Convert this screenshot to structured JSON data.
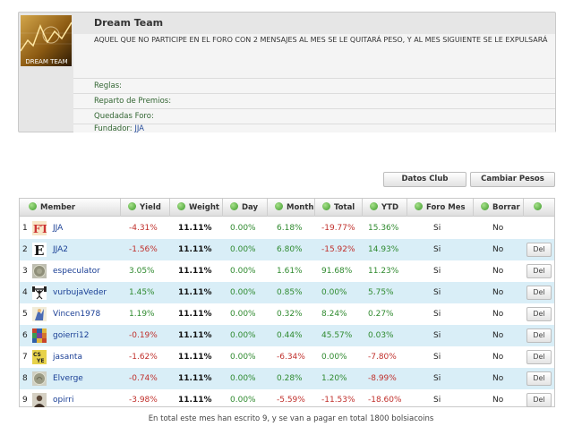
{
  "team": {
    "logo_text": "DREAM TEAM",
    "title": "Dream Team",
    "description": "AQUEL QUE NO PARTICIPE EN EL FORO CON 2 MENSAJES AL MES SE LE QUITARÁ PESO, Y AL MES SIGUIENTE SE LE EXPULSARÁ",
    "reglas_label": "Reglas:",
    "reparto_label": "Reparto de Premios:",
    "quedadas_label": "Quedadas Foro:",
    "fundador_label": "Fundador:",
    "fundador_name": "JJA"
  },
  "buttons": {
    "datos_club": "Datos Club",
    "cambiar_pesos": "Cambiar Pesos"
  },
  "table": {
    "headers": {
      "member": "Member",
      "yield": "Yield",
      "weight": "Weight",
      "day": "Day",
      "month": "Month",
      "total": "Total",
      "ytd": "YTD",
      "foro_mes": "Foro Mes",
      "borrar": "Borrar"
    },
    "del_label": "Del",
    "rows": [
      {
        "rank": "1",
        "name": "JJA",
        "avatar": "ft",
        "yield": "-4.31%",
        "weight": "11.11%",
        "day": "0.00%",
        "month": "6.18%",
        "total": "-19.77%",
        "ytd": "15.36%",
        "foro": "Si",
        "borrar": "No",
        "del": false
      },
      {
        "rank": "2",
        "name": "JJA2",
        "avatar": "e",
        "yield": "-1.56%",
        "weight": "11.11%",
        "day": "0.00%",
        "month": "6.80%",
        "total": "-15.92%",
        "ytd": "14.93%",
        "foro": "Si",
        "borrar": "No",
        "del": true
      },
      {
        "rank": "3",
        "name": "especulator",
        "avatar": "coin",
        "yield": "3.05%",
        "weight": "11.11%",
        "day": "0.00%",
        "month": "1.61%",
        "total": "91.68%",
        "ytd": "11.23%",
        "foro": "Si",
        "borrar": "No",
        "del": true
      },
      {
        "rank": "4",
        "name": "vurbujaVeder",
        "avatar": "lifter",
        "yield": "1.45%",
        "weight": "11.11%",
        "day": "0.00%",
        "month": "0.85%",
        "total": "0.00%",
        "ytd": "5.75%",
        "foro": "Si",
        "borrar": "No",
        "del": true
      },
      {
        "rank": "5",
        "name": "Vincen1978",
        "avatar": "figure",
        "yield": "1.19%",
        "weight": "11.11%",
        "day": "0.00%",
        "month": "0.32%",
        "total": "8.24%",
        "ytd": "0.27%",
        "foro": "Si",
        "borrar": "No",
        "del": true
      },
      {
        "rank": "6",
        "name": "goierri12",
        "avatar": "mosaic",
        "yield": "-0.19%",
        "weight": "11.11%",
        "day": "0.00%",
        "month": "0.44%",
        "total": "45.57%",
        "ytd": "0.03%",
        "foro": "Si",
        "borrar": "No",
        "del": true
      },
      {
        "rank": "7",
        "name": "jasanta",
        "avatar": "letters",
        "yield": "-1.62%",
        "weight": "11.11%",
        "day": "0.00%",
        "month": "-6.34%",
        "total": "0.00%",
        "ytd": "-7.80%",
        "foro": "Si",
        "borrar": "No",
        "del": true
      },
      {
        "rank": "8",
        "name": "Elverge",
        "avatar": "coin2",
        "yield": "-0.74%",
        "weight": "11.11%",
        "day": "0.00%",
        "month": "0.28%",
        "total": "1.20%",
        "ytd": "-8.99%",
        "foro": "Si",
        "borrar": "No",
        "del": true
      },
      {
        "rank": "9",
        "name": "opirri",
        "avatar": "person",
        "yield": "-3.98%",
        "weight": "11.11%",
        "day": "0.00%",
        "month": "-5.59%",
        "total": "-11.53%",
        "ytd": "-18.60%",
        "foro": "Si",
        "borrar": "No",
        "del": true
      }
    ]
  },
  "footer": "En total este mes han escrito 9, y se van a pagar en total 1800 bolsiacoins",
  "colors": {
    "negative": "#c0302c",
    "positive": "#2f8a2f",
    "row_alt": "#d9eef7",
    "link": "#1a3f95"
  }
}
